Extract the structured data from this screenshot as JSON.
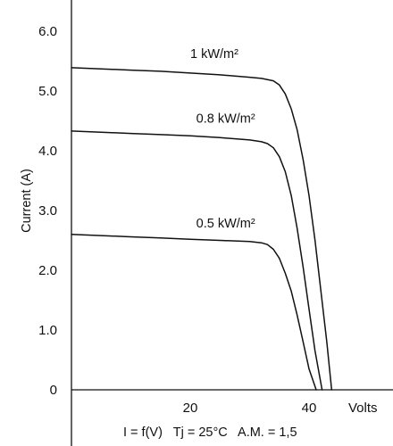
{
  "chart_data": {
    "type": "line",
    "xlabel": "Volts",
    "ylabel": "Current (A)",
    "xlim": [
      0,
      47
    ],
    "ylim": [
      0,
      6.4
    ],
    "x_ticks": [
      {
        "value": 20,
        "label": "20"
      },
      {
        "value": 40,
        "label": "40"
      }
    ],
    "y_ticks": [
      {
        "value": 0,
        "label": "0"
      },
      {
        "value": 1,
        "label": "1.0"
      },
      {
        "value": 2,
        "label": "2.0"
      },
      {
        "value": 3,
        "label": "3.0"
      },
      {
        "value": 4,
        "label": "4.0"
      },
      {
        "value": 5,
        "label": "5.0"
      },
      {
        "value": 6,
        "label": "6.0"
      }
    ],
    "grid": false,
    "footer": "I = f(V)   Tj = 25°C   A.M. = 1,5",
    "series": [
      {
        "name": "1 kW/m²",
        "x": [
          0,
          5,
          10,
          15,
          20,
          25,
          30,
          32,
          34,
          35,
          36,
          37,
          38,
          39,
          40,
          41,
          42,
          43,
          43.8
        ],
        "y": [
          5.39,
          5.37,
          5.35,
          5.33,
          5.3,
          5.27,
          5.23,
          5.21,
          5.17,
          5.1,
          4.95,
          4.7,
          4.35,
          3.85,
          3.25,
          2.5,
          1.65,
          0.8,
          0
        ]
      },
      {
        "name": "0.8 kW/m²",
        "x": [
          0,
          5,
          10,
          15,
          20,
          25,
          30,
          32,
          33,
          34,
          35,
          36,
          37,
          38,
          39,
          40,
          41,
          42.2
        ],
        "y": [
          4.33,
          4.31,
          4.29,
          4.27,
          4.25,
          4.22,
          4.18,
          4.15,
          4.12,
          4.05,
          3.9,
          3.65,
          3.25,
          2.7,
          2.05,
          1.35,
          0.65,
          0
        ]
      },
      {
        "name": "0.5 kW/m²",
        "x": [
          0,
          5,
          10,
          15,
          20,
          25,
          30,
          32,
          33,
          34,
          35,
          36,
          37,
          38,
          39,
          40,
          41.2
        ],
        "y": [
          2.6,
          2.58,
          2.56,
          2.54,
          2.52,
          2.5,
          2.48,
          2.46,
          2.43,
          2.35,
          2.2,
          1.95,
          1.65,
          1.25,
          0.8,
          0.35,
          0
        ]
      }
    ],
    "annotations": [
      {
        "series": "1 kW/m²",
        "text": "1 kW/m²",
        "x": 20,
        "y": 5.55
      },
      {
        "series": "0.8 kW/m²",
        "text": "0.8 kW/m²",
        "x": 21,
        "y": 4.47
      },
      {
        "series": "0.5 kW/m²",
        "text": "0.5 kW/m²",
        "x": 21,
        "y": 2.72
      }
    ]
  }
}
